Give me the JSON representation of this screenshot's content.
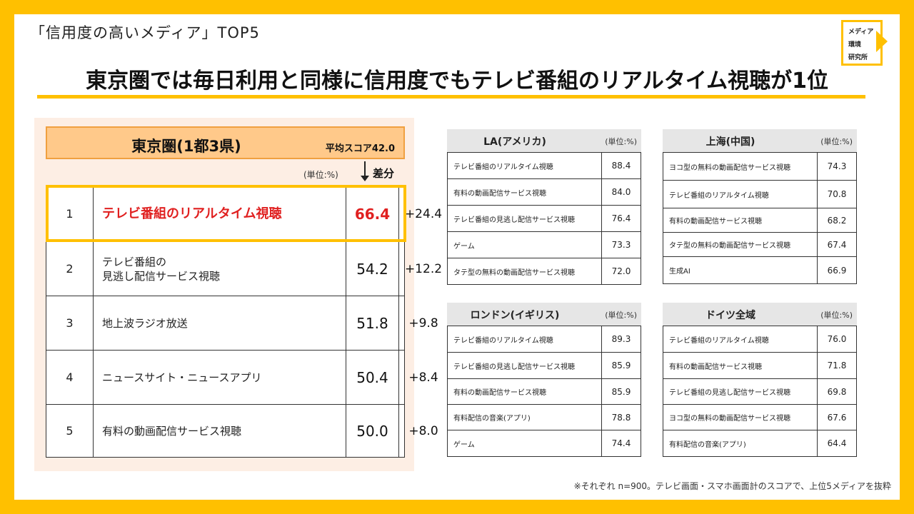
{
  "header": {
    "supertitle": "「信用度の高いメディア」TOP5",
    "title": "東京圏では毎日利用と同様に信用度でもテレビ番組のリアルタイム視聴が1位",
    "logo_lines": [
      "メディア",
      "環境",
      "研究所"
    ]
  },
  "tokyo": {
    "title": "東京圏(1都3県)",
    "average": "平均スコア42.0",
    "unit": "(単位:%)",
    "diff_label": "差分",
    "rows": [
      {
        "rank": "1",
        "name": "テレビ番組のリアルタイム視聴",
        "score": "66.4",
        "diff": "+24.4"
      },
      {
        "rank": "2",
        "name": "テレビ番組の\n見逃し配信サービス視聴",
        "score": "54.2",
        "diff": "+12.2"
      },
      {
        "rank": "3",
        "name": "地上波ラジオ放送",
        "score": "51.8",
        "diff": "+9.8"
      },
      {
        "rank": "4",
        "name": "ニュースサイト・ニュースアプリ",
        "score": "50.4",
        "diff": "+8.4"
      },
      {
        "rank": "5",
        "name": "有料の動画配信サービス視聴",
        "score": "50.0",
        "diff": "+8.0"
      }
    ]
  },
  "cities": {
    "la": {
      "name": "LA(アメリカ)",
      "unit": "(単位:%)",
      "rows": [
        {
          "name": "テレビ番組のリアルタイム視聴",
          "value": "88.4"
        },
        {
          "name": "有料の動画配信サービス視聴",
          "value": "84.0"
        },
        {
          "name": "テレビ番組の見逃し配信サービス視聴",
          "value": "76.4"
        },
        {
          "name": "ゲーム",
          "value": "73.3"
        },
        {
          "name": "タテ型の無料の動画配信サービス視聴",
          "value": "72.0"
        }
      ]
    },
    "shanghai": {
      "name": "上海(中国)",
      "unit": "(単位:%)",
      "rows": [
        {
          "name": "ヨコ型の無料の動画配信サービス視聴",
          "value": "74.3"
        },
        {
          "name": "テレビ番組のリアルタイム視聴",
          "value": "70.8"
        },
        {
          "name": "有料の動画配信サービス視聴",
          "value": "68.2"
        },
        {
          "name": "タテ型の無料の動画配信サービス視聴",
          "value": "67.4"
        },
        {
          "name": "生成AI",
          "value": "66.9"
        }
      ]
    },
    "london": {
      "name": "ロンドン(イギリス)",
      "unit": "(単位:%)",
      "rows": [
        {
          "name": "テレビ番組のリアルタイム視聴",
          "value": "89.3"
        },
        {
          "name": "テレビ番組の見逃し配信サービス視聴",
          "value": "85.9"
        },
        {
          "name": "有料の動画配信サービス視聴",
          "value": "85.9"
        },
        {
          "name": "有料配信の音楽(アプリ)",
          "value": "78.8"
        },
        {
          "name": "ゲーム",
          "value": "74.4"
        }
      ]
    },
    "germany": {
      "name": "ドイツ全域",
      "unit": "(単位:%)",
      "rows": [
        {
          "name": "テレビ番組のリアルタイム視聴",
          "value": "76.0"
        },
        {
          "name": "有料の動画配信サービス視聴",
          "value": "71.8"
        },
        {
          "name": "テレビ番組の見逃し配信サービス視聴",
          "value": "69.8"
        },
        {
          "name": "ヨコ型の無料の動画配信サービス視聴",
          "value": "67.6"
        },
        {
          "name": "有料配信の音楽(アプリ)",
          "value": "64.4"
        }
      ]
    }
  },
  "footnote": "※それぞれ n=900。テレビ画面・スマホ画面計のスコアで、上位5メディアを抜粋"
}
